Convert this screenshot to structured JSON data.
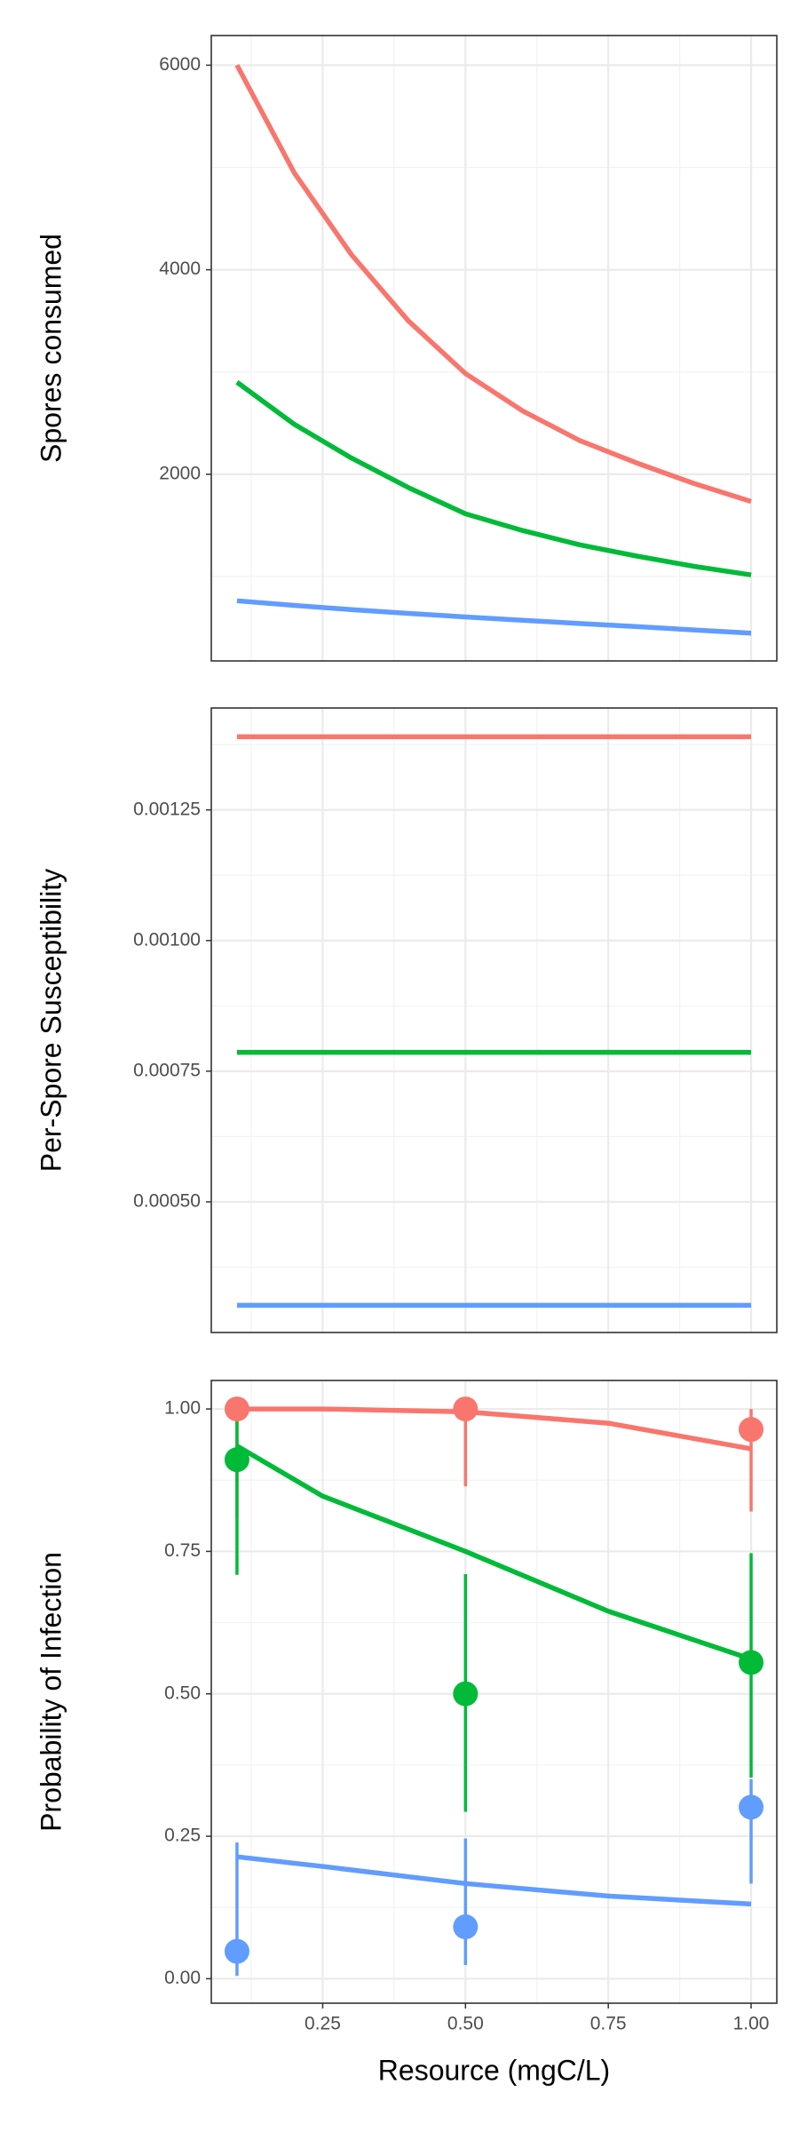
{
  "chart_data": [
    {
      "type": "line",
      "ylabel": "Spores consumed",
      "x": [
        0.1,
        0.2,
        0.3,
        0.4,
        0.5,
        0.6,
        0.7,
        0.8,
        0.9,
        1.0
      ],
      "series": [
        {
          "color": "#F8766D",
          "values": [
            6000,
            4950,
            4150,
            3500,
            2985,
            2620,
            2330,
            2110,
            1910,
            1734
          ]
        },
        {
          "color": "#00BA38",
          "values": [
            2900,
            2490,
            2160,
            1870,
            1614,
            1450,
            1310,
            1200,
            1100,
            1016
          ]
        },
        {
          "color": "#619CFF",
          "values": [
            763,
            718,
            677,
            640,
            605,
            572,
            541,
            511,
            478,
            446
          ]
        }
      ],
      "xlim": [
        0.055,
        1.045
      ],
      "xticks": [
        0.25,
        0.5,
        0.75,
        1.0
      ],
      "xminorticks": [
        0.125,
        0.375,
        0.625,
        0.875
      ],
      "ylim": [
        175,
        6290
      ],
      "yticks": [
        2000,
        4000,
        6000
      ],
      "yminorticks": [
        1000,
        3000,
        5000
      ],
      "grid": true
    },
    {
      "type": "line",
      "ylabel": "Per-Spore Susceptibility",
      "x": [
        0.1,
        1.0
      ],
      "series": [
        {
          "color": "#F8766D",
          "values": [
            0.00139,
            0.00139
          ]
        },
        {
          "color": "#00BA38",
          "values": [
            0.000786,
            0.000786
          ]
        },
        {
          "color": "#619CFF",
          "values": [
            0.000302,
            0.000302
          ]
        }
      ],
      "xlim": [
        0.055,
        1.045
      ],
      "xticks": [
        0.25,
        0.5,
        0.75,
        1.0
      ],
      "xminorticks": [
        0.125,
        0.375,
        0.625,
        0.875
      ],
      "ylim": [
        0.00025,
        0.001445
      ],
      "yticks": [
        {
          "value": 0.0005,
          "label": "0.00050"
        },
        {
          "value": 0.00075,
          "label": "0.00075"
        },
        {
          "value": 0.001,
          "label": "0.00100"
        },
        {
          "value": 0.00125,
          "label": "0.00125"
        }
      ],
      "yminorticks": [
        0.000375,
        0.000625,
        0.000875,
        0.001125,
        0.001375
      ],
      "grid": true
    },
    {
      "type": "line",
      "ylabel": "Probability of Infection",
      "xlabel": "Resource (mgC/L)",
      "x": [
        0.1,
        0.25,
        0.5,
        0.75,
        1.0
      ],
      "series": [
        {
          "color": "#F8766D",
          "values": [
            1.0,
            1.0,
            0.995,
            0.975,
            0.93
          ]
        },
        {
          "color": "#00BA38",
          "values": [
            0.935,
            0.847,
            0.75,
            0.645,
            0.561
          ]
        },
        {
          "color": "#619CFF",
          "values": [
            0.214,
            0.197,
            0.167,
            0.145,
            0.131
          ]
        }
      ],
      "observed": {
        "x": [
          0.1,
          0.5,
          1.0
        ],
        "series": [
          {
            "color": "#F8766D",
            "values": [
              1.0,
              1.0,
              0.964
            ],
            "lower": [
              0.81,
              0.864,
              0.82
            ],
            "upper": [
              1.0,
              1.0,
              1.0
            ]
          },
          {
            "color": "#00BA38",
            "values": [
              0.911,
              0.5,
              0.555
            ],
            "lower": [
              0.709,
              0.293,
              0.353
            ],
            "upper": [
              1.0,
              0.71,
              0.747
            ]
          },
          {
            "color": "#619CFF",
            "values": [
              0.048,
              0.091,
              0.301
            ],
            "lower": [
              0.005,
              0.024,
              0.167
            ],
            "upper": [
              0.239,
              0.246,
              0.35
            ]
          }
        ]
      },
      "xlim": [
        0.055,
        1.045
      ],
      "xticks": [
        0.25,
        {
          "value": 0.5,
          "label": "0.50"
        },
        0.75,
        {
          "value": 1.0,
          "label": "1.00"
        }
      ],
      "xminorticks": [
        0.125,
        0.375,
        0.625,
        0.875
      ],
      "ylim": [
        -0.043,
        1.05
      ],
      "yticks": [
        {
          "value": 0,
          "label": "0.00"
        },
        0.25,
        {
          "value": 0.5,
          "label": "0.50"
        },
        0.75,
        {
          "value": 1,
          "label": "1.00"
        }
      ],
      "yminorticks": [
        0.125,
        0.375,
        0.625,
        0.875
      ],
      "grid": true
    }
  ]
}
